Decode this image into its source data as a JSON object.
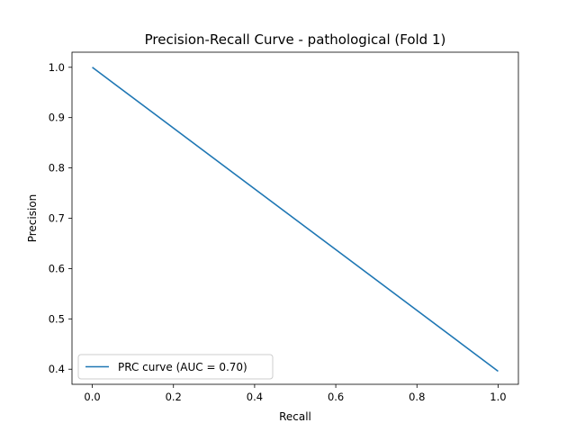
{
  "chart_data": {
    "type": "line",
    "title": "Precision-Recall Curve - pathological (Fold 1)",
    "xlabel": "Recall",
    "ylabel": "Precision",
    "xlim": [
      -0.05,
      1.05
    ],
    "ylim": [
      0.37,
      1.03
    ],
    "xticks": [
      0.0,
      0.2,
      0.4,
      0.6,
      0.8,
      1.0
    ],
    "xtick_labels": [
      "0.0",
      "0.2",
      "0.4",
      "0.6",
      "0.8",
      "1.0"
    ],
    "yticks": [
      0.4,
      0.5,
      0.6,
      0.7,
      0.8,
      0.9,
      1.0
    ],
    "ytick_labels": [
      "0.4",
      "0.5",
      "0.6",
      "0.7",
      "0.8",
      "0.9",
      "1.0"
    ],
    "grid": false,
    "legend_position": "lower-left",
    "series": [
      {
        "name": "PRC curve (AUC = 0.70)",
        "color": "#1f77b4",
        "x": [
          0.0,
          1.0
        ],
        "y": [
          1.0,
          0.396
        ]
      }
    ]
  }
}
